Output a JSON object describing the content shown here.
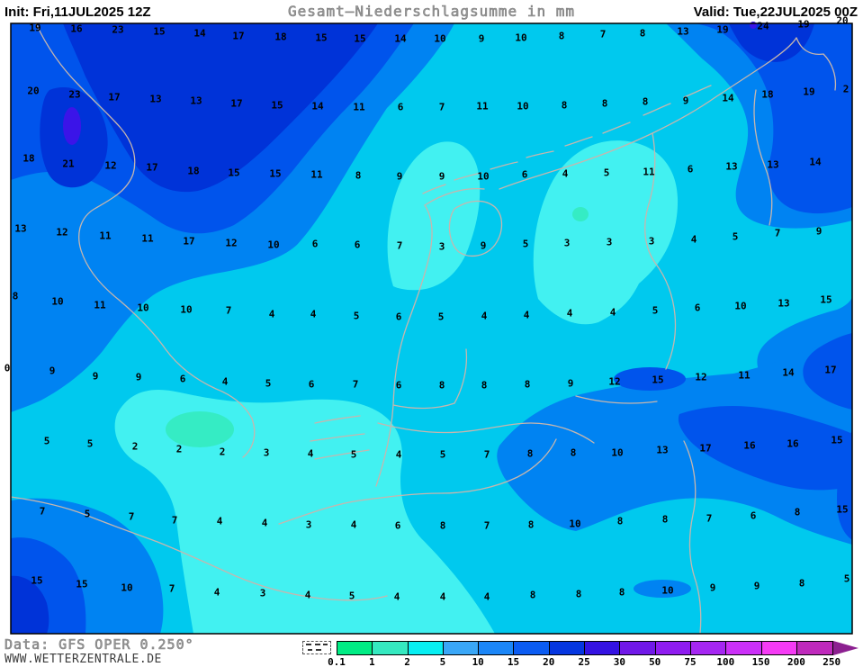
{
  "header": {
    "init_label": "Init: Fri,11JUL2025 12Z",
    "title": "Gesamt—Niederschlagsumme in mm",
    "valid_label": "Valid: Tue,22JUL2025 00Z"
  },
  "footer": {
    "data_source": "Data: GFS OPER 0.250°",
    "website": "WWW.WETTERZENTRALE.DE"
  },
  "map": {
    "colors": {
      "level_0_1": "#00ec84",
      "level_1_2": "#35ecc4",
      "level_2_5": "#42f1f1",
      "level_5_10": "#00c9ee",
      "level_10_15": "#0083f2",
      "level_15_20": "#0054ec",
      "level_20_25": "#0033d8",
      "level_25_30": "#3b14e8",
      "border": "#c6b6ae",
      "frame": "#000000",
      "number": "#000000"
    },
    "values": [
      [
        19,
        39,
        31
      ],
      [
        16,
        85,
        32
      ],
      [
        23,
        131,
        33
      ],
      [
        15,
        177,
        35
      ],
      [
        14,
        222,
        37
      ],
      [
        17,
        265,
        40
      ],
      [
        18,
        312,
        41
      ],
      [
        15,
        357,
        42
      ],
      [
        15,
        400,
        43
      ],
      [
        14,
        445,
        43
      ],
      [
        10,
        489,
        43
      ],
      [
        9,
        535,
        43
      ],
      [
        10,
        579,
        42
      ],
      [
        8,
        624,
        40
      ],
      [
        7,
        670,
        38
      ],
      [
        8,
        714,
        37
      ],
      [
        13,
        759,
        35
      ],
      [
        19,
        803,
        33
      ],
      [
        24,
        848,
        29
      ],
      [
        19,
        893,
        27
      ],
      [
        20,
        936,
        23
      ],
      [
        20,
        37,
        101
      ],
      [
        23,
        83,
        105
      ],
      [
        17,
        127,
        108
      ],
      [
        13,
        173,
        110
      ],
      [
        13,
        218,
        112
      ],
      [
        17,
        263,
        115
      ],
      [
        15,
        308,
        117
      ],
      [
        14,
        353,
        118
      ],
      [
        11,
        399,
        119
      ],
      [
        6,
        445,
        119
      ],
      [
        7,
        491,
        119
      ],
      [
        11,
        536,
        118
      ],
      [
        10,
        581,
        118
      ],
      [
        8,
        627,
        117
      ],
      [
        8,
        672,
        115
      ],
      [
        8,
        717,
        113
      ],
      [
        9,
        762,
        112
      ],
      [
        14,
        809,
        109
      ],
      [
        18,
        853,
        105
      ],
      [
        19,
        899,
        102
      ],
      [
        2,
        940,
        99
      ],
      [
        18,
        32,
        176
      ],
      [
        21,
        76,
        182
      ],
      [
        12,
        123,
        184
      ],
      [
        17,
        169,
        186
      ],
      [
        18,
        215,
        190
      ],
      [
        15,
        260,
        192
      ],
      [
        15,
        306,
        193
      ],
      [
        11,
        352,
        194
      ],
      [
        8,
        398,
        195
      ],
      [
        9,
        444,
        196
      ],
      [
        9,
        491,
        196
      ],
      [
        10,
        537,
        196
      ],
      [
        6,
        583,
        194
      ],
      [
        4,
        628,
        193
      ],
      [
        5,
        674,
        192
      ],
      [
        11,
        721,
        191
      ],
      [
        6,
        767,
        188
      ],
      [
        13,
        813,
        185
      ],
      [
        13,
        859,
        183
      ],
      [
        14,
        906,
        180
      ],
      [
        13,
        23,
        254
      ],
      [
        12,
        69,
        258
      ],
      [
        11,
        117,
        262
      ],
      [
        11,
        164,
        265
      ],
      [
        17,
        210,
        268
      ],
      [
        12,
        257,
        270
      ],
      [
        10,
        304,
        272
      ],
      [
        6,
        350,
        271
      ],
      [
        6,
        397,
        272
      ],
      [
        7,
        444,
        273
      ],
      [
        3,
        491,
        274
      ],
      [
        9,
        537,
        273
      ],
      [
        5,
        584,
        271
      ],
      [
        3,
        630,
        270
      ],
      [
        3,
        677,
        269
      ],
      [
        3,
        724,
        268
      ],
      [
        4,
        771,
        266
      ],
      [
        5,
        817,
        263
      ],
      [
        7,
        864,
        259
      ],
      [
        9,
        910,
        257
      ],
      [
        8,
        17,
        329
      ],
      [
        10,
        64,
        335
      ],
      [
        11,
        111,
        339
      ],
      [
        10,
        159,
        342
      ],
      [
        10,
        207,
        344
      ],
      [
        7,
        254,
        345
      ],
      [
        4,
        302,
        349
      ],
      [
        4,
        348,
        349
      ],
      [
        5,
        396,
        351
      ],
      [
        6,
        443,
        352
      ],
      [
        5,
        490,
        352
      ],
      [
        4,
        538,
        351
      ],
      [
        4,
        585,
        350
      ],
      [
        4,
        633,
        348
      ],
      [
        4,
        681,
        347
      ],
      [
        5,
        728,
        345
      ],
      [
        6,
        775,
        342
      ],
      [
        10,
        823,
        340
      ],
      [
        13,
        871,
        337
      ],
      [
        15,
        918,
        333
      ],
      [
        0,
        8,
        409
      ],
      [
        9,
        58,
        412
      ],
      [
        9,
        106,
        418
      ],
      [
        9,
        154,
        419
      ],
      [
        6,
        203,
        421
      ],
      [
        4,
        250,
        424
      ],
      [
        5,
        298,
        426
      ],
      [
        6,
        346,
        427
      ],
      [
        7,
        395,
        427
      ],
      [
        6,
        443,
        428
      ],
      [
        8,
        491,
        428
      ],
      [
        8,
        538,
        428
      ],
      [
        8,
        586,
        427
      ],
      [
        9,
        634,
        426
      ],
      [
        12,
        683,
        424
      ],
      [
        15,
        731,
        422
      ],
      [
        12,
        779,
        419
      ],
      [
        11,
        827,
        417
      ],
      [
        14,
        876,
        414
      ],
      [
        17,
        923,
        411
      ],
      [
        5,
        52,
        490
      ],
      [
        5,
        100,
        493
      ],
      [
        2,
        150,
        496
      ],
      [
        2,
        199,
        499
      ],
      [
        2,
        247,
        502
      ],
      [
        3,
        296,
        503
      ],
      [
        4,
        345,
        504
      ],
      [
        5,
        393,
        505
      ],
      [
        4,
        443,
        505
      ],
      [
        5,
        492,
        505
      ],
      [
        7,
        541,
        505
      ],
      [
        8,
        589,
        504
      ],
      [
        8,
        637,
        503
      ],
      [
        10,
        686,
        503
      ],
      [
        13,
        736,
        500
      ],
      [
        17,
        784,
        498
      ],
      [
        16,
        833,
        495
      ],
      [
        16,
        881,
        493
      ],
      [
        15,
        930,
        489
      ],
      [
        7,
        47,
        568
      ],
      [
        5,
        97,
        571
      ],
      [
        7,
        146,
        574
      ],
      [
        7,
        194,
        578
      ],
      [
        4,
        244,
        579
      ],
      [
        4,
        294,
        581
      ],
      [
        3,
        343,
        583
      ],
      [
        4,
        393,
        583
      ],
      [
        6,
        442,
        584
      ],
      [
        8,
        492,
        584
      ],
      [
        7,
        541,
        584
      ],
      [
        8,
        590,
        583
      ],
      [
        10,
        639,
        582
      ],
      [
        8,
        689,
        579
      ],
      [
        8,
        739,
        577
      ],
      [
        7,
        788,
        576
      ],
      [
        6,
        837,
        573
      ],
      [
        8,
        886,
        569
      ],
      [
        15,
        936,
        566
      ],
      [
        15,
        41,
        645
      ],
      [
        15,
        91,
        649
      ],
      [
        10,
        141,
        653
      ],
      [
        7,
        191,
        654
      ],
      [
        4,
        241,
        658
      ],
      [
        3,
        292,
        659
      ],
      [
        4,
        342,
        661
      ],
      [
        5,
        391,
        662
      ],
      [
        4,
        441,
        663
      ],
      [
        4,
        492,
        663
      ],
      [
        4,
        541,
        663
      ],
      [
        8,
        592,
        661
      ],
      [
        8,
        643,
        660
      ],
      [
        8,
        691,
        658
      ],
      [
        10,
        742,
        656
      ],
      [
        9,
        792,
        653
      ],
      [
        9,
        841,
        651
      ],
      [
        8,
        891,
        648
      ],
      [
        5,
        941,
        643
      ]
    ]
  },
  "colorbar": {
    "tick_labels": [
      "0.1",
      "1",
      "2",
      "5",
      "10",
      "15",
      "20",
      "25",
      "30",
      "50",
      "75",
      "100",
      "150",
      "200",
      "250"
    ],
    "box_colors": [
      "#00ec84",
      "#35e9c0",
      "#07eff2",
      "#3aa7f7",
      "#1b86f7",
      "#0b5cf2",
      "#0536e0",
      "#3412e2",
      "#7018e8",
      "#8f1cf0",
      "#a526f2",
      "#cb30f8",
      "#f53bf5",
      "#bf2abc"
    ],
    "arrow_color": "#8c2090",
    "box_width": 39.3
  }
}
